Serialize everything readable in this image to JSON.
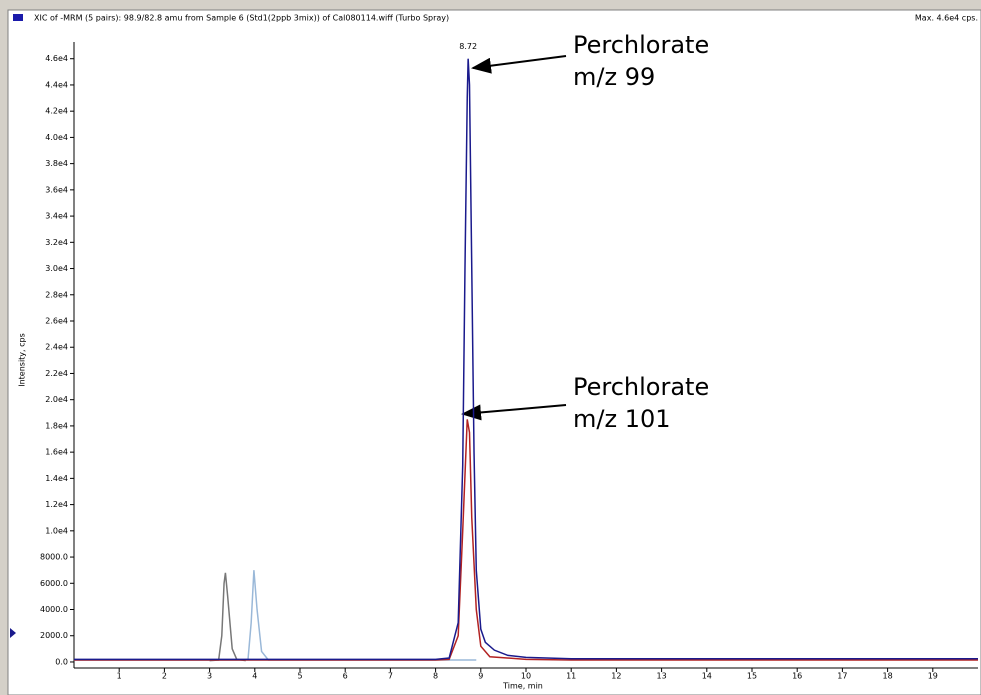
{
  "chart_data": {
    "type": "line",
    "title": "XIC of -MRM (5 pairs): 98.9/82.8 amu from Sample 6 (Std1(2ppb 3mix)) of Cal080114.wiff (Turbo Spray)",
    "max_label": "Max. 4.6e4 cps.",
    "x_label": "Time, min",
    "y_label": "Intensity, cps",
    "peak_label": 8.72,
    "annotations": [
      [
        "Perchlorate",
        "m/z 99"
      ],
      [
        "Perchlorate",
        "m/z 101"
      ]
    ],
    "xlim": [
      0,
      20
    ],
    "xticks": [
      1,
      2,
      3,
      4,
      5,
      6,
      7,
      8,
      9,
      10,
      11,
      12,
      13,
      14,
      15,
      16,
      17,
      18,
      19
    ],
    "ylim": [
      -460,
      48800
    ],
    "yticks": [
      {
        "value": 0,
        "label": "0.0"
      },
      {
        "value": 2000,
        "label": "2000.0"
      },
      {
        "value": 4000,
        "label": "4000.0"
      },
      {
        "value": 6000,
        "label": "6000.0"
      },
      {
        "value": 8000,
        "label": "8000.0"
      },
      {
        "value": 10000,
        "label": "1.0e4"
      },
      {
        "value": 12000,
        "label": "1.2e4"
      },
      {
        "value": 14000,
        "label": "1.4e4"
      },
      {
        "value": 16000,
        "label": "1.6e4"
      },
      {
        "value": 18000,
        "label": "1.8e4"
      },
      {
        "value": 20000,
        "label": "2.0e4"
      },
      {
        "value": 22000,
        "label": "2.2e4"
      },
      {
        "value": 24000,
        "label": "2.4e4"
      },
      {
        "value": 26000,
        "label": "2.6e4"
      },
      {
        "value": 28000,
        "label": "2.8e4"
      },
      {
        "value": 30000,
        "label": "3.0e4"
      },
      {
        "value": 32000,
        "label": "3.2e4"
      },
      {
        "value": 34000,
        "label": "3.4e4"
      },
      {
        "value": 36000,
        "label": "3.6e4"
      },
      {
        "value": 38000,
        "label": "3.8e4"
      },
      {
        "value": 40000,
        "label": "4.0e4"
      },
      {
        "value": 42000,
        "label": "4.2e4"
      },
      {
        "value": 44000,
        "label": "4.4e4"
      },
      {
        "value": 46000,
        "label": "4.6e4"
      }
    ],
    "series": [
      {
        "color": "#9ab8d8",
        "x": [
          0,
          1,
          2,
          3,
          3.7,
          3.85,
          3.92,
          3.98,
          4.05,
          4.15,
          4.3,
          5,
          6,
          7,
          8,
          8.9
        ],
        "values": [
          150,
          150,
          150,
          150,
          150,
          200,
          3000,
          7000,
          4000,
          800,
          150,
          150,
          150,
          150,
          150,
          150
        ]
      },
      {
        "color": "#777777",
        "x": [
          3.0,
          3.2,
          3.27,
          3.32,
          3.35,
          3.4,
          3.5,
          3.6,
          3.8
        ],
        "values": [
          100,
          150,
          2000,
          6000,
          6800,
          5000,
          1000,
          200,
          100
        ]
      },
      {
        "color": "#b22222",
        "x": [
          0,
          1,
          2,
          3,
          4,
          5,
          6,
          7,
          8,
          8.3,
          8.5,
          8.6,
          8.7,
          8.75,
          8.8,
          8.9,
          9.0,
          9.2,
          10,
          11,
          12,
          13,
          14,
          15,
          16,
          17,
          18,
          19,
          20
        ],
        "values": [
          150,
          150,
          150,
          150,
          150,
          150,
          150,
          150,
          150,
          200,
          2000,
          10000,
          18500,
          17500,
          11000,
          4000,
          1200,
          400,
          200,
          150,
          150,
          150,
          150,
          150,
          150,
          150,
          150,
          150,
          150
        ]
      },
      {
        "color": "#1a1a8c",
        "x": [
          0,
          1,
          2,
          3,
          4,
          5,
          6,
          7,
          8,
          8.3,
          8.5,
          8.6,
          8.65,
          8.7,
          8.72,
          8.75,
          8.8,
          8.85,
          8.9,
          9.0,
          9.1,
          9.3,
          9.6,
          10,
          11,
          12,
          13,
          14,
          15,
          16,
          17,
          18,
          19,
          20
        ],
        "values": [
          200,
          200,
          200,
          200,
          200,
          200,
          200,
          200,
          200,
          300,
          3000,
          15000,
          30000,
          43000,
          46000,
          44000,
          30000,
          16000,
          7000,
          2500,
          1500,
          900,
          500,
          350,
          250,
          250,
          250,
          250,
          250,
          250,
          250,
          250,
          250,
          250
        ]
      }
    ]
  }
}
